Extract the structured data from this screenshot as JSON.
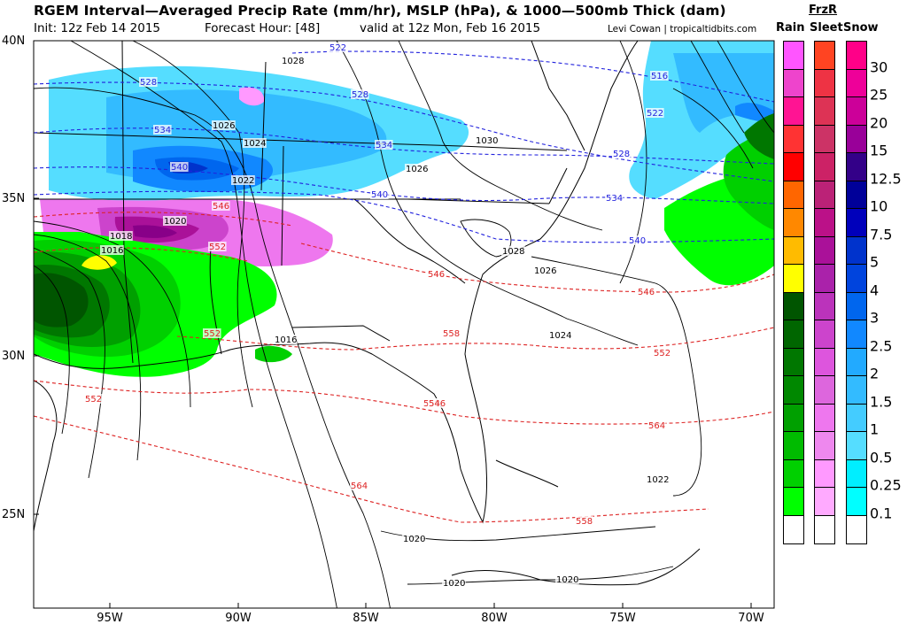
{
  "header": {
    "title": "RGEM Interval—Averaged Precip Rate (mm/hr), MSLP (hPa), & 1000—500mb Thick (dam)",
    "init": "Init: 12z Feb 14 2015",
    "forecast_hour": "Forecast Hour: [48]",
    "valid": "valid at 12z Mon, Feb 16 2015",
    "credit": "Levi Cowan | tropicaltidbits.com"
  },
  "axes": {
    "lat_labels": [
      "40N",
      "35N",
      "30N",
      "25N"
    ],
    "lon_labels": [
      "95W",
      "90W",
      "85W",
      "80W",
      "75W",
      "70W"
    ]
  },
  "legend": {
    "frzr_label": "FrzR",
    "rain_label": "Rain",
    "sleet_label": "Sleet",
    "snow_label": "Snow",
    "ticks": [
      "30",
      "25",
      "20",
      "15",
      "12.5",
      "10",
      "7.5",
      "5",
      "4",
      "3",
      "2.5",
      "2",
      "1.5",
      "1",
      "0.5",
      "0.25",
      "0.1"
    ],
    "rain_colors": [
      "#ff55ff",
      "#ee44cc",
      "#ff1493",
      "#ff3333",
      "#ff0000",
      "#ff6600",
      "#ff8800",
      "#ffbb00",
      "#ffff00",
      "#005500",
      "#006600",
      "#007700",
      "#008800",
      "#00a000",
      "#00bb00",
      "#00d000",
      "#00ff00",
      "#ffffff"
    ],
    "sleet_colors": [
      "#ff4422",
      "#ee3344",
      "#dd3355",
      "#cc3366",
      "#cc2266",
      "#bb2277",
      "#bb1188",
      "#aa1199",
      "#aa22aa",
      "#bb33bb",
      "#cc44cc",
      "#dd55dd",
      "#dd66dd",
      "#ee77ee",
      "#ee88ee",
      "#ff99ff",
      "#ffaaff",
      "#ffffff"
    ],
    "snow_colors": [
      "#ff0088",
      "#ee0099",
      "#cc0099",
      "#990099",
      "#330088",
      "#000099",
      "#0000bb",
      "#0033cc",
      "#0044dd",
      "#0066ee",
      "#1188ff",
      "#22aaff",
      "#33bbff",
      "#44ccff",
      "#55ddff",
      "#00eeff",
      "#00ffff",
      "#ffffff"
    ]
  },
  "isobar_labels": [
    "1028",
    "1026",
    "1024",
    "1022",
    "1020",
    "1018",
    "1016",
    "1030",
    "1026",
    "1028",
    "1026",
    "1024",
    "1016",
    "1022",
    "1020",
    "1020",
    "1020"
  ],
  "thickness_labels_blue": [
    "522",
    "528",
    "528",
    "534",
    "540",
    "534",
    "528",
    "540",
    "534",
    "540",
    "516",
    "522",
    "528"
  ],
  "thickness_labels_red": [
    "546",
    "552",
    "546",
    "546",
    "552",
    "552",
    "558",
    "558",
    "564",
    "564",
    "558",
    "552",
    "546"
  ]
}
